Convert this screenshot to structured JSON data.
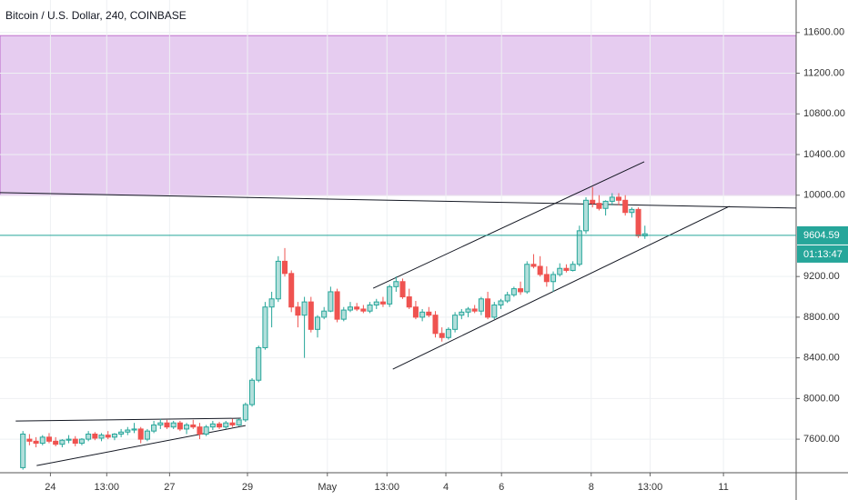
{
  "chart_data": {
    "type": "candlestick",
    "title": "Bitcoin / U.S. Dollar, 240, COINBASE",
    "open": [
      7320,
      7600,
      7580,
      7560,
      7620,
      7580,
      7550,
      7590,
      7600,
      7560,
      7600,
      7650,
      7610,
      7640,
      7620,
      7650,
      7670,
      7690,
      7700,
      7600,
      7680,
      7740,
      7760,
      7720,
      7760,
      7700,
      7740,
      7720,
      7650,
      7720,
      7750,
      7720,
      7760,
      7740,
      7790,
      7940,
      8180,
      8500,
      8900,
      8980,
      9350,
      9230,
      8900,
      8820,
      8950,
      8680,
      8800,
      8860,
      9050,
      8780,
      8870,
      8900,
      8880,
      8860,
      8920,
      8950,
      8930,
      9100,
      9150,
      9000,
      8900,
      8800,
      8850,
      8820,
      8640,
      8600,
      8680,
      8820,
      8850,
      8880,
      8860,
      8980,
      8800,
      8920,
      8960,
      9020,
      9080,
      9050,
      9320,
      9300,
      9220,
      9150,
      9220,
      9280,
      9260,
      9320,
      9650,
      9950,
      9920,
      9870,
      9940,
      9980,
      9950,
      9830,
      9860,
      9600
    ],
    "high": [
      7680,
      7650,
      7620,
      7640,
      7660,
      7620,
      7600,
      7640,
      7630,
      7610,
      7680,
      7670,
      7660,
      7680,
      7660,
      7700,
      7720,
      7760,
      7720,
      7700,
      7780,
      7800,
      7790,
      7780,
      7780,
      7760,
      7790,
      7760,
      7740,
      7780,
      7770,
      7780,
      7800,
      7800,
      7960,
      8200,
      8520,
      8950,
      9050,
      9400,
      9480,
      9260,
      8950,
      9000,
      9000,
      8820,
      8900,
      9100,
      9080,
      8900,
      8950,
      8940,
      8920,
      8950,
      8980,
      9000,
      9120,
      9200,
      9180,
      9080,
      8960,
      8880,
      8900,
      8860,
      8700,
      8700,
      8850,
      8880,
      8900,
      8920,
      9000,
      9050,
      8950,
      8980,
      9050,
      9100,
      9150,
      9350,
      9420,
      9400,
      9300,
      9250,
      9330,
      9320,
      9350,
      9700,
      9980,
      10080,
      10000,
      9950,
      10020,
      10020,
      10000,
      9880,
      9880,
      9700
    ],
    "low": [
      7300,
      7540,
      7520,
      7540,
      7560,
      7530,
      7520,
      7560,
      7530,
      7540,
      7580,
      7590,
      7580,
      7600,
      7590,
      7620,
      7640,
      7660,
      7560,
      7580,
      7660,
      7700,
      7700,
      7700,
      7680,
      7650,
      7700,
      7600,
      7630,
      7690,
      7700,
      7700,
      7720,
      7730,
      7770,
      7920,
      8160,
      8480,
      8700,
      8950,
      9200,
      8850,
      8700,
      8400,
      8650,
      8600,
      8780,
      8850,
      8750,
      8760,
      8850,
      8860,
      8840,
      8840,
      8880,
      8900,
      8900,
      9050,
      8980,
      8880,
      8780,
      8760,
      8800,
      8600,
      8560,
      8580,
      8650,
      8780,
      8800,
      8840,
      8820,
      8780,
      8780,
      8880,
      8940,
      9000,
      9020,
      9030,
      9280,
      9200,
      9100,
      9050,
      9200,
      9240,
      9250,
      9300,
      9620,
      9880,
      9850,
      9800,
      9900,
      9900,
      9800,
      9780,
      9580,
      9570
    ],
    "close": [
      7650,
      7580,
      7560,
      7620,
      7580,
      7550,
      7590,
      7600,
      7560,
      7600,
      7650,
      7610,
      7640,
      7620,
      7650,
      7670,
      7690,
      7700,
      7600,
      7680,
      7740,
      7760,
      7720,
      7760,
      7700,
      7740,
      7720,
      7650,
      7720,
      7750,
      7720,
      7760,
      7740,
      7790,
      7940,
      8180,
      8500,
      8900,
      8980,
      9350,
      9230,
      8900,
      8820,
      8950,
      8680,
      8800,
      8860,
      9050,
      8780,
      8870,
      8900,
      8880,
      8860,
      8920,
      8950,
      8930,
      9100,
      9150,
      9000,
      8900,
      8800,
      8850,
      8820,
      8640,
      8600,
      8680,
      8820,
      8850,
      8880,
      8860,
      8980,
      8800,
      8920,
      8960,
      9020,
      9080,
      9050,
      9320,
      9300,
      9220,
      9150,
      9220,
      9280,
      9260,
      9320,
      9650,
      9950,
      9920,
      9870,
      9940,
      9980,
      9950,
      9830,
      9860,
      9600,
      9620
    ],
    "up_color": "#26a69a",
    "down_color": "#ef5350",
    "xlim": [
      -3.5,
      118.1
    ],
    "xticks": [
      {
        "value": 4.2,
        "label": "24"
      },
      {
        "value": 12.8,
        "label": "13:00"
      },
      {
        "value": 22.4,
        "label": "27"
      },
      {
        "value": 34.3,
        "label": "29"
      },
      {
        "value": 46.5,
        "label": "May"
      },
      {
        "value": 55.6,
        "label": "13:00"
      },
      {
        "value": 64.6,
        "label": "4"
      },
      {
        "value": 73.1,
        "label": "6"
      },
      {
        "value": 86.8,
        "label": "8"
      },
      {
        "value": 95.8,
        "label": "13:00"
      },
      {
        "value": 107,
        "label": "11"
      }
    ],
    "ylim": [
      7270,
      11920
    ],
    "yticks": [
      {
        "value": 7600,
        "label": "7600.00"
      },
      {
        "value": 8000,
        "label": "8000.00"
      },
      {
        "value": 8400,
        "label": "8400.00"
      },
      {
        "value": 8800,
        "label": "8800.00"
      },
      {
        "value": 9200,
        "label": "9200.00"
      },
      {
        "value": 10000,
        "label": "10000.00"
      },
      {
        "value": 10400,
        "label": "10400.00"
      },
      {
        "value": 10800,
        "label": "10800.00"
      },
      {
        "value": 11200,
        "label": "11200.00"
      },
      {
        "value": 11600,
        "label": "11600.00"
      }
    ],
    "grid": true,
    "zone": {
      "from": 10000,
      "to": 11570,
      "color": "#e6ccf0"
    },
    "trendlines": [
      {
        "x": [
          -1.1,
          33.3
        ],
        "y": [
          7779,
          7806
        ]
      },
      {
        "x": [
          2.1,
          34
        ],
        "y": [
          7340,
          7734
        ]
      },
      {
        "x": [
          -3.5,
          118.1
        ],
        "y": [
          10025,
          9873
        ]
      },
      {
        "x": [
          53.5,
          94.9
        ],
        "y": [
          9085,
          10329
        ]
      },
      {
        "x": [
          56.5,
          107.9
        ],
        "y": [
          8289,
          9891
        ]
      }
    ],
    "last_price": 9604.59,
    "countdown": "01:13:47"
  }
}
